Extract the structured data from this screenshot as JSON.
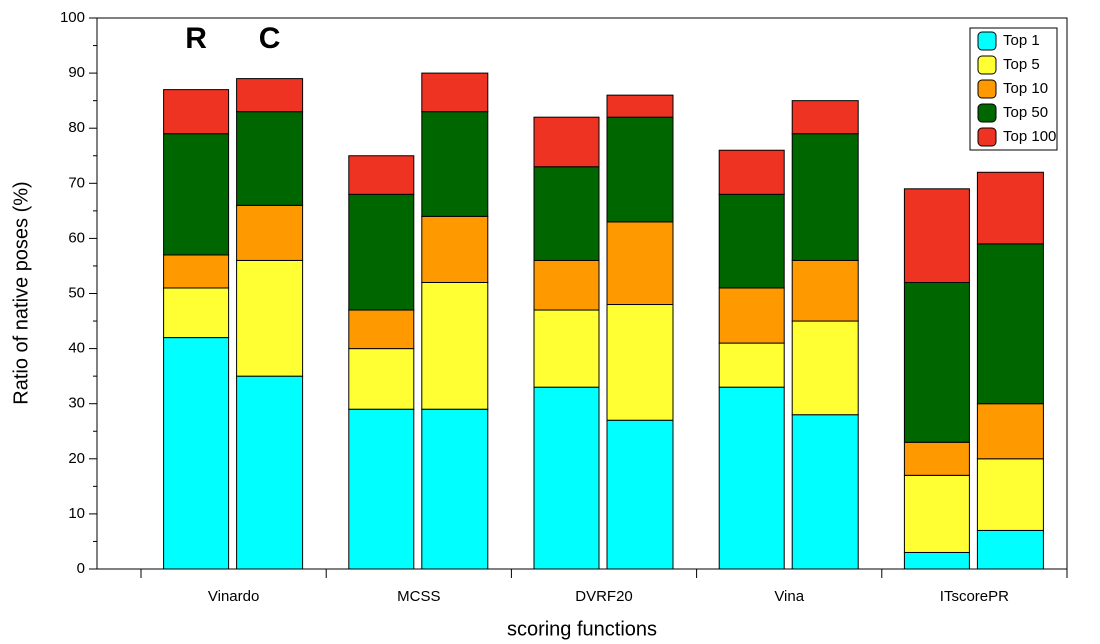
{
  "chart_data": {
    "type": "grouped-stacked-bar",
    "x_label": "scoring functions",
    "y_label": "Ratio of native poses (%)",
    "categories": [
      "Vinardo",
      "MCSS",
      "DVRF20",
      "Vina",
      "ITscorePR"
    ],
    "stack_groups": [
      "R",
      "C"
    ],
    "series": [
      {
        "name": "Top 1",
        "color": "#00ffff",
        "values": [
          [
            42,
            35
          ],
          [
            29,
            29
          ],
          [
            33,
            27
          ],
          [
            33,
            28
          ],
          [
            3,
            7
          ]
        ]
      },
      {
        "name": "Top 5",
        "color": "#ffff33",
        "values": [
          [
            9,
            21
          ],
          [
            11,
            23
          ],
          [
            14,
            21
          ],
          [
            8,
            17
          ],
          [
            14,
            13
          ]
        ]
      },
      {
        "name": "Top 10",
        "color": "#ff9900",
        "values": [
          [
            6,
            10
          ],
          [
            7,
            12
          ],
          [
            9,
            15
          ],
          [
            10,
            11
          ],
          [
            6,
            10
          ]
        ]
      },
      {
        "name": "Top 50",
        "color": "#006600",
        "values": [
          [
            22,
            17
          ],
          [
            21,
            19
          ],
          [
            17,
            19
          ],
          [
            17,
            23
          ],
          [
            29,
            29
          ]
        ]
      },
      {
        "name": "Top 100",
        "color": "#ee3322",
        "values": [
          [
            8,
            6
          ],
          [
            7,
            7
          ],
          [
            9,
            4
          ],
          [
            8,
            6
          ],
          [
            17,
            13
          ]
        ]
      }
    ],
    "ylim": [
      0,
      100
    ],
    "yticks": [
      0,
      10,
      20,
      30,
      40,
      50,
      60,
      70,
      80,
      90,
      100
    ],
    "legend": "upper-right"
  }
}
